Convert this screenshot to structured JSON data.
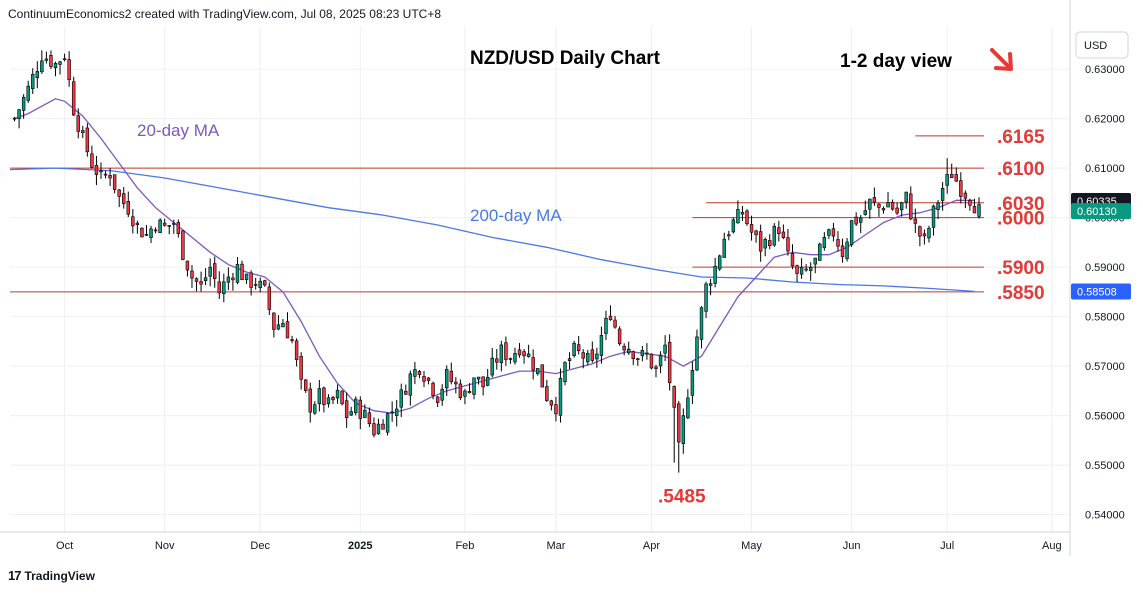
{
  "header": {
    "credit": "ContinuumEconomics2 created with TradingView.com, Jul 08, 2025 08:23 UTC+8"
  },
  "footer": {
    "brand": "TradingView",
    "brand_icon": "tradingview-logo-icon"
  },
  "colors": {
    "up_candle": "#089981",
    "down_candle": "#f23645",
    "ma20": "#7e57c2",
    "ma200": "#4a78e6",
    "level_line": "#c0392b",
    "level_label": "#e53935",
    "grid": "#eef0f3",
    "axis_text": "#131722",
    "price_tag_dark": "#131722",
    "price_tag_green": "#089981",
    "price_tag_blue": "#2962ff"
  },
  "chart_data": {
    "type": "candlestick",
    "title": "NZD/USD Daily Chart",
    "subtitle": "1-2 day view",
    "view_arrow": "down-right-arrow-icon",
    "currency": "USD",
    "ylim": [
      0.5365,
      0.6385
    ],
    "y_ticks": [
      "0.63000",
      "0.62000",
      "0.61000",
      "0.60000",
      "0.59000",
      "0.58000",
      "0.57000",
      "0.56000",
      "0.55000",
      "0.54000"
    ],
    "x_ticks": [
      {
        "label": "Oct",
        "day": 0
      },
      {
        "label": "Nov",
        "day": 22
      },
      {
        "label": "Dec",
        "day": 43
      },
      {
        "label": "2025",
        "day": 65
      },
      {
        "label": "Feb",
        "day": 88
      },
      {
        "label": "Mar",
        "day": 108
      },
      {
        "label": "Apr",
        "day": 129
      },
      {
        "label": "May",
        "day": 151
      },
      {
        "label": "Jun",
        "day": 173
      },
      {
        "label": "Jul",
        "day": 194
      },
      {
        "label": "Aug",
        "day": 217
      }
    ],
    "x_range": [
      -12,
      221
    ],
    "levels": [
      {
        "label": ".6165",
        "value": 0.6165,
        "from_day": 187
      },
      {
        "label": ".6100",
        "value": 0.61,
        "from_day": -12
      },
      {
        "label": ".6030",
        "value": 0.603,
        "from_day": 141
      },
      {
        "label": ".6000",
        "value": 0.6,
        "from_day": 138
      },
      {
        "label": ".5900",
        "value": 0.59,
        "from_day": 138
      },
      {
        "label": ".5850",
        "value": 0.585,
        "from_day": -12
      }
    ],
    "annotations": [
      {
        "label": ".5485",
        "value": 0.5485,
        "day": 135
      },
      {
        "label": "20-day MA",
        "series": "ma20"
      },
      {
        "label": "200-day MA",
        "series": "ma200"
      }
    ],
    "price_tags": [
      {
        "value": 0.60335,
        "label": "0.60335",
        "style": "dark"
      },
      {
        "value": 0.6013,
        "label": "0.60130",
        "style": "green"
      },
      {
        "value": 0.58508,
        "label": "0.58508",
        "style": "blue"
      }
    ],
    "close_path": [
      [
        -11,
        0.62
      ],
      [
        -8,
        0.626
      ],
      [
        -5,
        0.633
      ],
      [
        -2,
        0.631
      ],
      [
        0,
        0.633
      ],
      [
        2,
        0.622
      ],
      [
        4,
        0.616
      ],
      [
        6,
        0.611
      ],
      [
        8,
        0.608
      ],
      [
        10,
        0.609
      ],
      [
        12,
        0.604
      ],
      [
        14,
        0.602
      ],
      [
        16,
        0.598
      ],
      [
        18,
        0.5965
      ],
      [
        20,
        0.599
      ],
      [
        22,
        0.598
      ],
      [
        24,
        0.599
      ],
      [
        26,
        0.593
      ],
      [
        28,
        0.588
      ],
      [
        30,
        0.586
      ],
      [
        32,
        0.59
      ],
      [
        34,
        0.585
      ],
      [
        36,
        0.588
      ],
      [
        38,
        0.59
      ],
      [
        40,
        0.587
      ],
      [
        42,
        0.587
      ],
      [
        44,
        0.585
      ],
      [
        46,
        0.578
      ],
      [
        48,
        0.579
      ],
      [
        50,
        0.575
      ],
      [
        52,
        0.566
      ],
      [
        54,
        0.562
      ],
      [
        56,
        0.564
      ],
      [
        58,
        0.562
      ],
      [
        60,
        0.564
      ],
      [
        62,
        0.56
      ],
      [
        64,
        0.562
      ],
      [
        66,
        0.56
      ],
      [
        68,
        0.557
      ],
      [
        70,
        0.559
      ],
      [
        72,
        0.561
      ],
      [
        74,
        0.564
      ],
      [
        76,
        0.568
      ],
      [
        78,
        0.57
      ],
      [
        80,
        0.567
      ],
      [
        82,
        0.564
      ],
      [
        84,
        0.568
      ],
      [
        86,
        0.566
      ],
      [
        88,
        0.564
      ],
      [
        90,
        0.568
      ],
      [
        92,
        0.566
      ],
      [
        94,
        0.57
      ],
      [
        96,
        0.573
      ],
      [
        98,
        0.572
      ],
      [
        100,
        0.574
      ],
      [
        102,
        0.572
      ],
      [
        104,
        0.569
      ],
      [
        106,
        0.564
      ],
      [
        108,
        0.562
      ],
      [
        110,
        0.57
      ],
      [
        112,
        0.573
      ],
      [
        114,
        0.572
      ],
      [
        116,
        0.57
      ],
      [
        118,
        0.576
      ],
      [
        120,
        0.581
      ],
      [
        122,
        0.575
      ],
      [
        124,
        0.574
      ],
      [
        126,
        0.572
      ],
      [
        128,
        0.572
      ],
      [
        130,
        0.569
      ],
      [
        132,
        0.574
      ],
      [
        134,
        0.56
      ],
      [
        135,
        0.553
      ],
      [
        137,
        0.565
      ],
      [
        139,
        0.576
      ],
      [
        141,
        0.586
      ],
      [
        143,
        0.59
      ],
      [
        145,
        0.596
      ],
      [
        147,
        0.599
      ],
      [
        149,
        0.601
      ],
      [
        151,
        0.597
      ],
      [
        153,
        0.594
      ],
      [
        155,
        0.596
      ],
      [
        157,
        0.598
      ],
      [
        159,
        0.592
      ],
      [
        161,
        0.588
      ],
      [
        163,
        0.589
      ],
      [
        165,
        0.591
      ],
      [
        167,
        0.595
      ],
      [
        169,
        0.597
      ],
      [
        171,
        0.593
      ],
      [
        173,
        0.599
      ],
      [
        175,
        0.6
      ],
      [
        177,
        0.603
      ],
      [
        179,
        0.602
      ],
      [
        181,
        0.603
      ],
      [
        183,
        0.601
      ],
      [
        185,
        0.604
      ],
      [
        187,
        0.598
      ],
      [
        189,
        0.595
      ],
      [
        191,
        0.601
      ],
      [
        193,
        0.606
      ],
      [
        195,
        0.609
      ],
      [
        197,
        0.606
      ],
      [
        199,
        0.604
      ],
      [
        201,
        0.6013
      ]
    ],
    "ma20": [
      [
        -11,
        0.62
      ],
      [
        -8,
        0.621
      ],
      [
        -5,
        0.6225
      ],
      [
        -2,
        0.624
      ],
      [
        0,
        0.6235
      ],
      [
        4,
        0.6205
      ],
      [
        8,
        0.616
      ],
      [
        12,
        0.611
      ],
      [
        16,
        0.606
      ],
      [
        20,
        0.602
      ],
      [
        24,
        0.599
      ],
      [
        28,
        0.596
      ],
      [
        32,
        0.593
      ],
      [
        36,
        0.5905
      ],
      [
        40,
        0.589
      ],
      [
        44,
        0.588
      ],
      [
        48,
        0.585
      ],
      [
        52,
        0.579
      ],
      [
        56,
        0.572
      ],
      [
        60,
        0.5665
      ],
      [
        64,
        0.5625
      ],
      [
        68,
        0.561
      ],
      [
        72,
        0.5605
      ],
      [
        76,
        0.5615
      ],
      [
        80,
        0.5635
      ],
      [
        84,
        0.565
      ],
      [
        88,
        0.566
      ],
      [
        92,
        0.567
      ],
      [
        96,
        0.568
      ],
      [
        100,
        0.569
      ],
      [
        104,
        0.569
      ],
      [
        108,
        0.5685
      ],
      [
        112,
        0.5695
      ],
      [
        116,
        0.5705
      ],
      [
        120,
        0.572
      ],
      [
        124,
        0.573
      ],
      [
        128,
        0.5725
      ],
      [
        132,
        0.572
      ],
      [
        136,
        0.57
      ],
      [
        140,
        0.572
      ],
      [
        144,
        0.578
      ],
      [
        148,
        0.584
      ],
      [
        152,
        0.588
      ],
      [
        156,
        0.592
      ],
      [
        160,
        0.593
      ],
      [
        164,
        0.5925
      ],
      [
        168,
        0.5925
      ],
      [
        172,
        0.594
      ],
      [
        176,
        0.5965
      ],
      [
        180,
        0.599
      ],
      [
        184,
        0.6005
      ],
      [
        188,
        0.601
      ],
      [
        192,
        0.602
      ],
      [
        196,
        0.6035
      ],
      [
        200,
        0.6035
      ]
    ],
    "ma200": [
      [
        -12,
        0.6097
      ],
      [
        -2,
        0.61
      ],
      [
        10,
        0.6095
      ],
      [
        22,
        0.608
      ],
      [
        34,
        0.606
      ],
      [
        46,
        0.604
      ],
      [
        58,
        0.602
      ],
      [
        70,
        0.6005
      ],
      [
        82,
        0.5985
      ],
      [
        94,
        0.596
      ],
      [
        106,
        0.594
      ],
      [
        118,
        0.5915
      ],
      [
        130,
        0.5895
      ],
      [
        140,
        0.588
      ],
      [
        150,
        0.5878
      ],
      [
        160,
        0.587
      ],
      [
        170,
        0.5865
      ],
      [
        180,
        0.5862
      ],
      [
        190,
        0.5857
      ],
      [
        200,
        0.5851
      ]
    ]
  }
}
